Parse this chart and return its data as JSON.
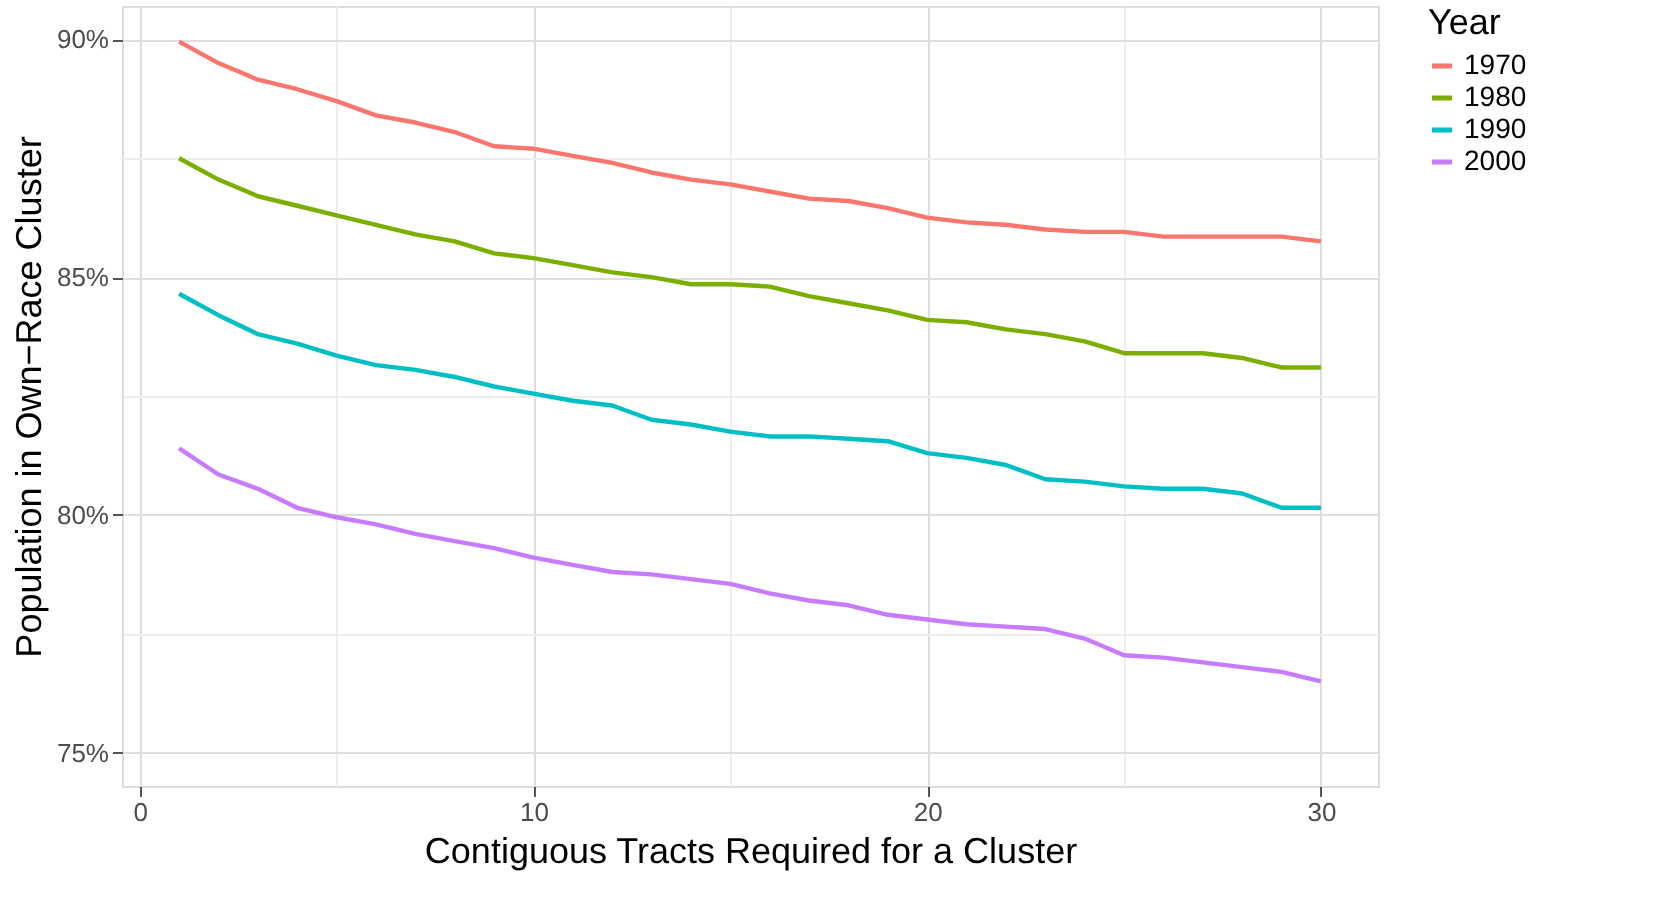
{
  "chart_data": {
    "type": "line",
    "xlabel": "Contiguous Tracts Required for a Cluster",
    "ylabel": "Population in Own−Race Cluster",
    "legend_title": "Year",
    "x": [
      1,
      2,
      3,
      4,
      5,
      6,
      7,
      8,
      9,
      10,
      11,
      12,
      13,
      14,
      15,
      16,
      17,
      18,
      19,
      20,
      21,
      22,
      23,
      24,
      25,
      26,
      27,
      28,
      29,
      30
    ],
    "series": [
      {
        "name": "1970",
        "color": "#f8766d",
        "values": [
          89.95,
          89.5,
          89.15,
          88.95,
          88.7,
          88.4,
          88.25,
          88.05,
          87.75,
          87.7,
          87.55,
          87.4,
          87.2,
          87.05,
          86.95,
          86.8,
          86.65,
          86.6,
          86.45,
          86.25,
          86.15,
          86.1,
          86.0,
          85.95,
          85.95,
          85.85,
          85.85,
          85.85,
          85.85,
          85.75
        ]
      },
      {
        "name": "1980",
        "color": "#7cae00",
        "values": [
          87.5,
          87.05,
          86.7,
          86.5,
          86.3,
          86.1,
          85.9,
          85.75,
          85.5,
          85.4,
          85.25,
          85.1,
          85.0,
          84.85,
          84.85,
          84.8,
          84.6,
          84.45,
          84.3,
          84.1,
          84.05,
          83.9,
          83.8,
          83.65,
          83.4,
          83.4,
          83.4,
          83.3,
          83.1,
          83.1
        ]
      },
      {
        "name": "1990",
        "color": "#00bfc4",
        "values": [
          84.65,
          84.2,
          83.8,
          83.6,
          83.35,
          83.15,
          83.05,
          82.9,
          82.7,
          82.55,
          82.4,
          82.3,
          82.0,
          81.9,
          81.75,
          81.65,
          81.65,
          81.6,
          81.55,
          81.3,
          81.2,
          81.05,
          80.75,
          80.7,
          80.6,
          80.55,
          80.55,
          80.45,
          80.15,
          80.15
        ]
      },
      {
        "name": "2000",
        "color": "#c77cff",
        "values": [
          81.4,
          80.85,
          80.55,
          80.15,
          79.95,
          79.8,
          79.6,
          79.45,
          79.3,
          79.1,
          78.95,
          78.8,
          78.75,
          78.65,
          78.55,
          78.35,
          78.2,
          78.1,
          77.9,
          77.8,
          77.7,
          77.65,
          77.6,
          77.4,
          77.05,
          77.0,
          76.9,
          76.8,
          76.7,
          76.5
        ]
      }
    ],
    "xlim": [
      -0.45,
      31.45
    ],
    "xticks": [
      0,
      {
        "value": 5,
        "label": null
      },
      10,
      {
        "value": 15,
        "label": null
      },
      20,
      {
        "value": 25,
        "label": null
      },
      30
    ],
    "ylim": [
      74.3,
      90.7
    ],
    "yticks": [
      {
        "value": 75,
        "label": "75%"
      },
      {
        "value": 77.5,
        "label": null
      },
      {
        "value": 80,
        "label": "80%"
      },
      {
        "value": 82.5,
        "label": null
      },
      {
        "value": 85,
        "label": "85%"
      },
      {
        "value": 87.5,
        "label": null
      },
      {
        "value": 90,
        "label": "90%"
      }
    ],
    "grid": true,
    "legend": "right",
    "line_style": "solid",
    "marker": "none"
  }
}
